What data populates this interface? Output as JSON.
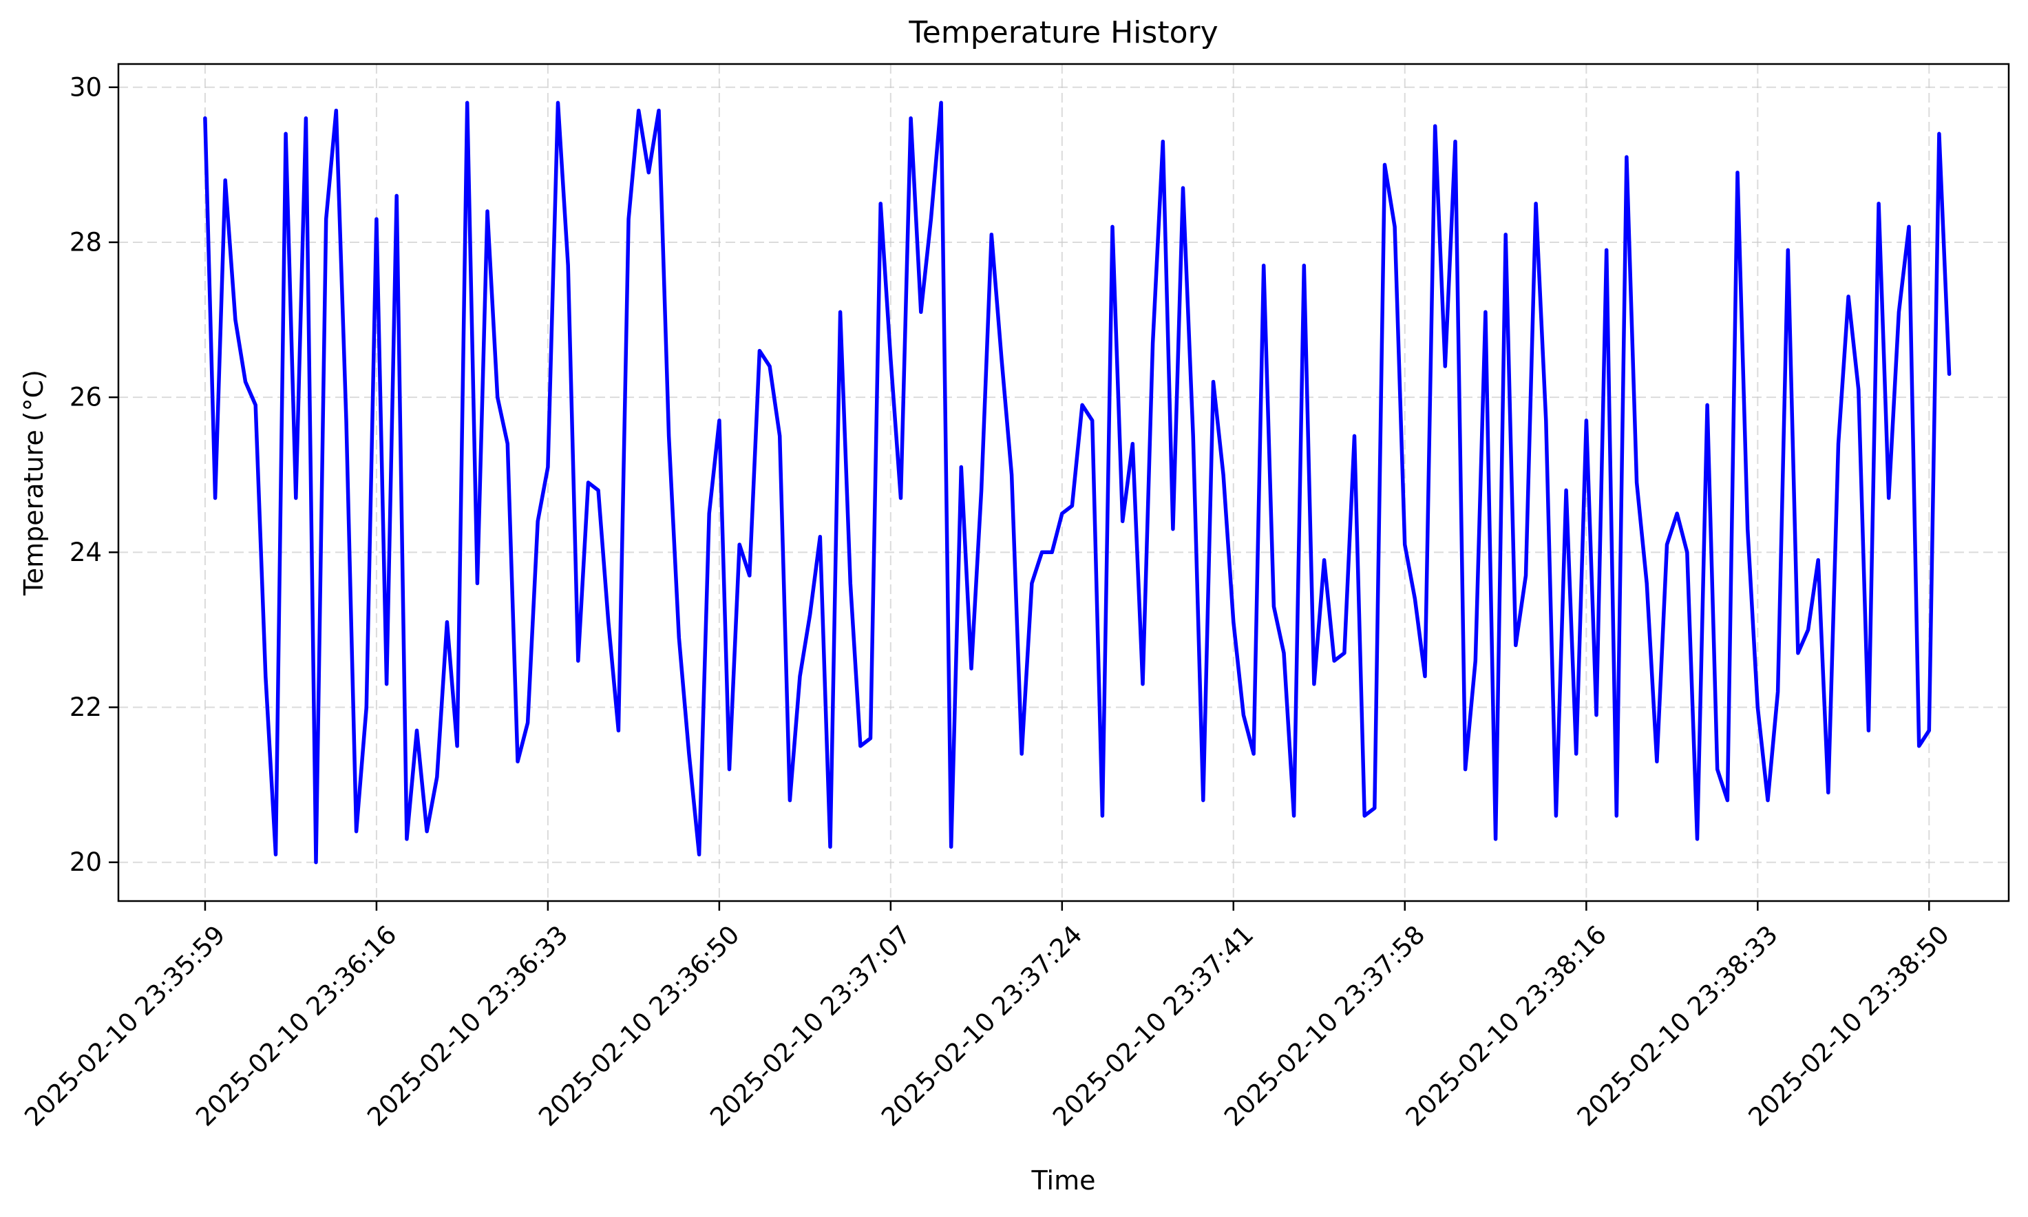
{
  "chart_data": {
    "type": "line",
    "title": "Temperature History",
    "xlabel": "Time",
    "ylabel": "Temperature (°C)",
    "x_ticks": [
      "2025-02-10 23:35:59",
      "2025-02-10 23:36:16",
      "2025-02-10 23:36:33",
      "2025-02-10 23:36:50",
      "2025-02-10 23:37:07",
      "2025-02-10 23:37:24",
      "2025-02-10 23:37:41",
      "2025-02-10 23:37:58",
      "2025-02-10 23:38:16",
      "2025-02-10 23:38:33",
      "2025-02-10 23:38:50"
    ],
    "y_ticks": [
      20,
      22,
      24,
      26,
      28,
      30
    ],
    "ylim": [
      19.5,
      30.3
    ],
    "xlim": [
      "2025-02-10 23:35:50.4",
      "2025-02-10 23:38:57.9"
    ],
    "grid": true,
    "series": [
      {
        "color": "#0000ff",
        "x_start": "2025-02-10 23:35:59",
        "x_interval_seconds": 1,
        "values": [
          29.6,
          24.7,
          28.8,
          27.0,
          26.2,
          25.9,
          22.4,
          20.1,
          29.4,
          24.7,
          29.6,
          20.0,
          28.3,
          29.7,
          25.7,
          20.4,
          22.0,
          28.3,
          22.3,
          28.6,
          20.3,
          21.7,
          20.4,
          21.1,
          23.1,
          21.5,
          29.8,
          23.6,
          28.4,
          26.0,
          25.4,
          21.3,
          21.8,
          24.4,
          25.1,
          29.8,
          27.7,
          22.6,
          24.9,
          24.8,
          23.1,
          21.7,
          28.3,
          29.7,
          28.9,
          29.7,
          25.5,
          22.9,
          21.4,
          20.1,
          24.5,
          25.7,
          21.2,
          24.1,
          23.7,
          26.6,
          26.4,
          25.5,
          20.8,
          22.4,
          23.2,
          24.2,
          20.2,
          27.1,
          23.6,
          21.5,
          21.6,
          28.5,
          26.5,
          24.7,
          29.6,
          27.1,
          28.3,
          29.8,
          20.2,
          25.1,
          22.5,
          24.8,
          28.1,
          26.5,
          25.0,
          21.4,
          23.6,
          24.0,
          24.0,
          24.5,
          24.6,
          25.9,
          25.7,
          20.6,
          28.2,
          24.4,
          25.4,
          22.3,
          26.7,
          29.3,
          24.3,
          28.7,
          25.5,
          20.8,
          26.2,
          25.0,
          23.1,
          21.9,
          21.4,
          27.7,
          23.3,
          22.7,
          20.6,
          27.7,
          22.3,
          23.9,
          22.6,
          22.7,
          25.5,
          20.6,
          20.7,
          29.0,
          28.2,
          24.1,
          23.4,
          22.4,
          29.5,
          26.4,
          29.3,
          21.2,
          22.6,
          27.1,
          20.3,
          28.1,
          22.8,
          23.7,
          28.5,
          25.7,
          20.6,
          24.8,
          21.4,
          25.7,
          21.9,
          27.9,
          20.6,
          29.1,
          24.9,
          23.6,
          21.3,
          24.1,
          24.5,
          24.0,
          20.3,
          25.9,
          21.2,
          20.8,
          28.9,
          24.3,
          22.0,
          20.8,
          22.2,
          27.9,
          22.7,
          23.0,
          23.9,
          20.9,
          25.4,
          27.3,
          26.1,
          21.7,
          28.5,
          24.7,
          27.1,
          28.2,
          21.5,
          21.7,
          29.4,
          26.3
        ]
      }
    ]
  }
}
